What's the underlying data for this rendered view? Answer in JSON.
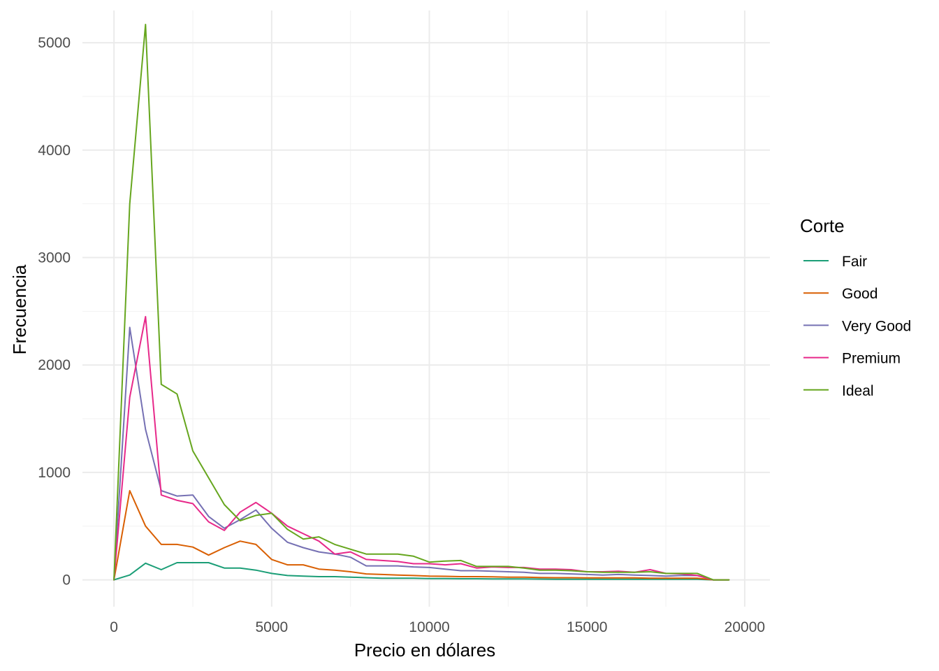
{
  "chart_data": {
    "type": "line",
    "title": "",
    "xlabel": "Precio en dólares",
    "ylabel": "Frecuencia",
    "xlim": [
      -1000,
      20800
    ],
    "ylim": [
      -250,
      5300
    ],
    "x_ticks": [
      0,
      5000,
      10000,
      15000,
      20000
    ],
    "y_ticks": [
      0,
      1000,
      2000,
      3000,
      4000,
      5000
    ],
    "grid": true,
    "legend": {
      "title": "Corte",
      "position": "right"
    },
    "x": [
      0,
      500,
      1000,
      1500,
      2000,
      2500,
      3000,
      3500,
      4000,
      4500,
      5000,
      5500,
      6000,
      6500,
      7000,
      7500,
      8000,
      8500,
      9000,
      9500,
      10000,
      10500,
      11000,
      11500,
      12000,
      12500,
      13000,
      13500,
      14000,
      14500,
      15000,
      15500,
      16000,
      16500,
      17000,
      17500,
      18000,
      18500,
      19000,
      19500
    ],
    "series": [
      {
        "name": "Fair",
        "color": "#1B9E77",
        "values": [
          0,
          45,
          155,
          95,
          160,
          160,
          160,
          110,
          110,
          90,
          60,
          40,
          35,
          30,
          30,
          25,
          20,
          15,
          15,
          15,
          12,
          12,
          10,
          10,
          8,
          8,
          8,
          7,
          6,
          6,
          5,
          5,
          5,
          5,
          5,
          5,
          5,
          5,
          0,
          0
        ]
      },
      {
        "name": "Good",
        "color": "#D95F02",
        "values": [
          0,
          830,
          500,
          330,
          330,
          305,
          230,
          300,
          360,
          330,
          190,
          140,
          140,
          100,
          90,
          75,
          55,
          50,
          45,
          40,
          35,
          33,
          30,
          30,
          28,
          25,
          25,
          22,
          20,
          20,
          18,
          18,
          18,
          18,
          15,
          15,
          15,
          15,
          0,
          0
        ]
      },
      {
        "name": "Very Good",
        "color": "#7570B3",
        "values": [
          0,
          2350,
          1400,
          830,
          780,
          790,
          590,
          480,
          560,
          650,
          480,
          350,
          300,
          260,
          240,
          210,
          130,
          130,
          130,
          120,
          115,
          100,
          85,
          85,
          80,
          75,
          70,
          60,
          60,
          55,
          50,
          45,
          50,
          45,
          40,
          35,
          40,
          40,
          0,
          0
        ]
      },
      {
        "name": "Premium",
        "color": "#E7298A",
        "values": [
          0,
          1700,
          2450,
          790,
          740,
          710,
          540,
          460,
          630,
          720,
          620,
          500,
          430,
          360,
          240,
          260,
          190,
          180,
          170,
          150,
          150,
          140,
          150,
          110,
          120,
          115,
          115,
          100,
          100,
          95,
          75,
          75,
          80,
          70,
          95,
          60,
          55,
          40,
          0,
          0
        ]
      },
      {
        "name": "Ideal",
        "color": "#66A61E",
        "values": [
          0,
          3500,
          5170,
          1820,
          1730,
          1200,
          950,
          700,
          550,
          600,
          620,
          470,
          380,
          400,
          330,
          285,
          240,
          240,
          240,
          220,
          165,
          175,
          180,
          125,
          125,
          125,
          110,
          90,
          90,
          85,
          75,
          70,
          70,
          70,
          75,
          60,
          60,
          60,
          0,
          0
        ]
      }
    ]
  }
}
